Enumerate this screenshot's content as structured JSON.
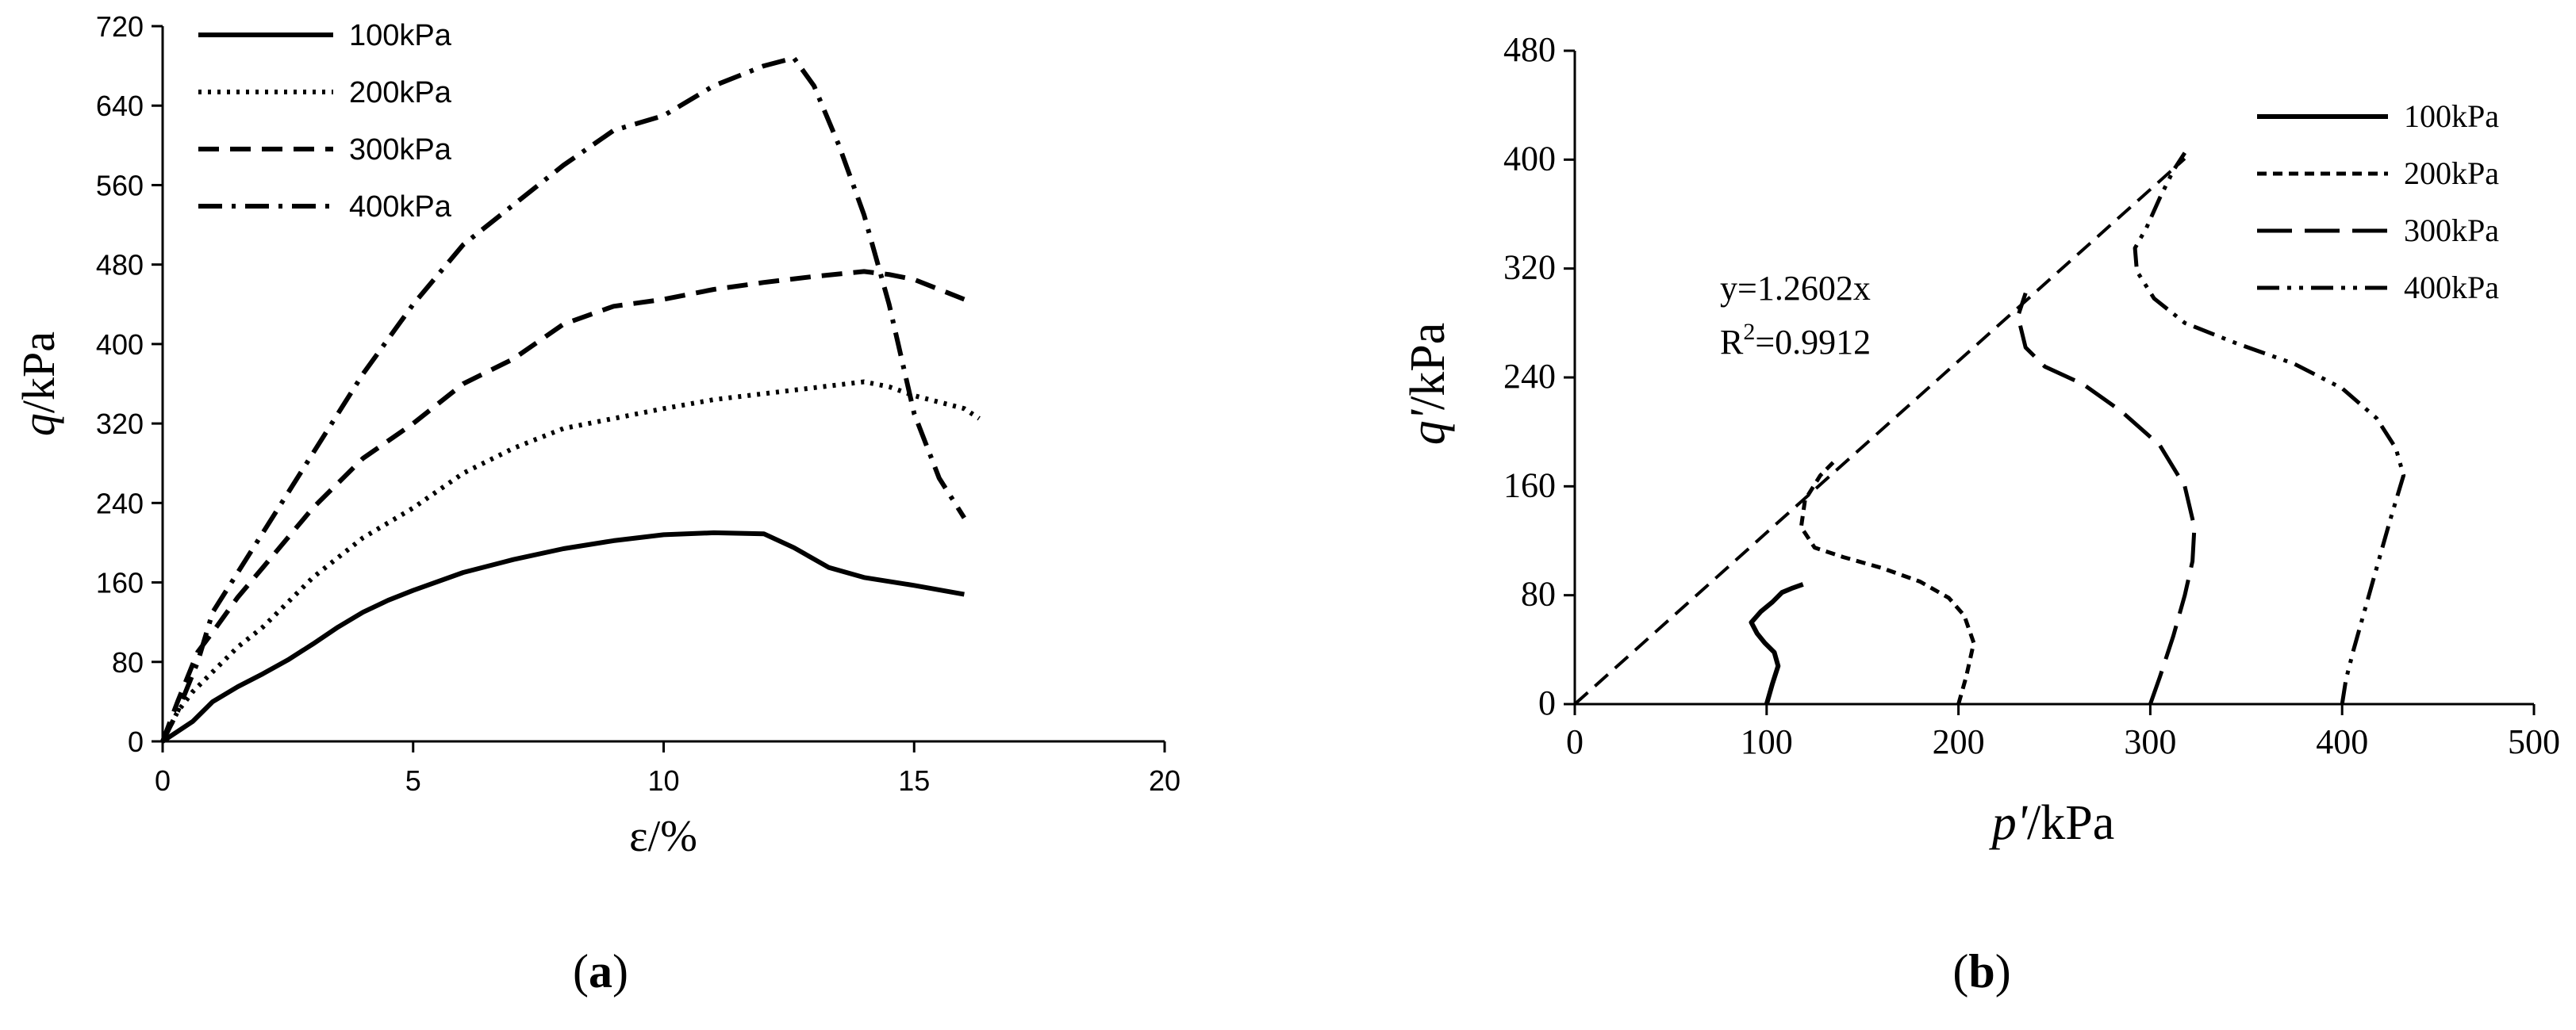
{
  "chart_data": [
    {
      "panel": "(a)",
      "type": "line",
      "xlabel": "ε/%",
      "ylabel": "q/kPa",
      "xlim": [
        0,
        20
      ],
      "ylim": [
        0,
        720
      ],
      "xticks": [
        0,
        5,
        10,
        15,
        20
      ],
      "yticks": [
        0,
        80,
        160,
        240,
        320,
        400,
        480,
        560,
        640,
        720
      ],
      "legend": "top-left",
      "series": [
        {
          "name": "100kPa",
          "style": "solid",
          "points": [
            [
              0,
              0
            ],
            [
              0.3,
              10
            ],
            [
              0.6,
              20
            ],
            [
              1,
              40
            ],
            [
              1.5,
              55
            ],
            [
              2,
              68
            ],
            [
              2.5,
              82
            ],
            [
              3,
              98
            ],
            [
              3.5,
              115
            ],
            [
              4,
              130
            ],
            [
              4.5,
              142
            ],
            [
              5,
              152
            ],
            [
              6,
              170
            ],
            [
              7,
              183
            ],
            [
              8,
              194
            ],
            [
              9,
              202
            ],
            [
              10,
              208
            ],
            [
              11,
              210
            ],
            [
              12,
              209
            ],
            [
              12.6,
              195
            ],
            [
              13.3,
              175
            ],
            [
              14,
              165
            ],
            [
              15,
              157
            ],
            [
              16,
              148
            ]
          ]
        },
        {
          "name": "200kPa",
          "style": "dotted",
          "points": [
            [
              0,
              0
            ],
            [
              0.3,
              30
            ],
            [
              0.6,
              50
            ],
            [
              1,
              70
            ],
            [
              1.5,
              95
            ],
            [
              2,
              115
            ],
            [
              3,
              165
            ],
            [
              4,
              205
            ],
            [
              5,
              235
            ],
            [
              6,
              270
            ],
            [
              7,
              295
            ],
            [
              8,
              315
            ],
            [
              9,
              325
            ],
            [
              10,
              335
            ],
            [
              11,
              344
            ],
            [
              12,
              350
            ],
            [
              13,
              356
            ],
            [
              14,
              362
            ],
            [
              14.5,
              357
            ],
            [
              15,
              348
            ],
            [
              16,
              335
            ],
            [
              16.3,
              325
            ]
          ]
        },
        {
          "name": "300kPa",
          "style": "dashed",
          "points": [
            [
              0,
              0
            ],
            [
              0.3,
              40
            ],
            [
              0.7,
              90
            ],
            [
              1,
              110
            ],
            [
              1.5,
              145
            ],
            [
              2,
              175
            ],
            [
              3,
              235
            ],
            [
              4,
              285
            ],
            [
              5,
              320
            ],
            [
              6,
              360
            ],
            [
              7,
              385
            ],
            [
              8,
              420
            ],
            [
              9,
              438
            ],
            [
              10,
              445
            ],
            [
              11,
              455
            ],
            [
              12,
              462
            ],
            [
              13,
              468
            ],
            [
              14,
              473
            ],
            [
              14.5,
              470
            ],
            [
              15,
              465
            ],
            [
              16,
              445
            ]
          ]
        },
        {
          "name": "400kPa",
          "style": "dashdot",
          "points": [
            [
              0,
              0
            ],
            [
              0.3,
              30
            ],
            [
              0.7,
              80
            ],
            [
              1,
              130
            ],
            [
              2,
              210
            ],
            [
              3,
              290
            ],
            [
              4,
              370
            ],
            [
              5,
              440
            ],
            [
              6,
              500
            ],
            [
              7,
              540
            ],
            [
              8,
              580
            ],
            [
              9,
              615
            ],
            [
              10,
              630
            ],
            [
              11,
              660
            ],
            [
              12,
              680
            ],
            [
              12.6,
              688
            ],
            [
              13,
              660
            ],
            [
              13.5,
              600
            ],
            [
              14,
              530
            ],
            [
              14.5,
              440
            ],
            [
              15,
              330
            ],
            [
              15.5,
              265
            ],
            [
              16,
              225
            ]
          ]
        }
      ]
    },
    {
      "panel": "(b)",
      "type": "line",
      "xlabel": "p'/kPa",
      "ylabel": "q'/kPa",
      "xlim": [
        0,
        500
      ],
      "ylim": [
        0,
        480
      ],
      "xticks": [
        0,
        100,
        200,
        300,
        400,
        500
      ],
      "yticks": [
        0,
        80,
        160,
        240,
        320,
        400,
        480
      ],
      "legend": "top-right",
      "annotation": {
        "line1": "y=1.2602x",
        "line2_pre": "R",
        "line2_sup": "2",
        "line2_post": "=0.9912"
      },
      "fit_line": {
        "slope": 1.2602,
        "x_range": [
          0,
          318
        ]
      },
      "series": [
        {
          "name": "100kPa",
          "style": "solid",
          "points": [
            [
              100,
              0
            ],
            [
              103,
              15
            ],
            [
              106,
              28
            ],
            [
              104,
              38
            ],
            [
              99,
              45
            ],
            [
              95,
              52
            ],
            [
              92,
              60
            ],
            [
              97,
              68
            ],
            [
              103,
              75
            ],
            [
              108,
              82
            ],
            [
              113,
              85
            ],
            [
              119,
              88
            ]
          ]
        },
        {
          "name": "200kPa",
          "style": "shortdash",
          "points": [
            [
              200,
              0
            ],
            [
              204,
              20
            ],
            [
              208,
              45
            ],
            [
              203,
              65
            ],
            [
              195,
              78
            ],
            [
              180,
              90
            ],
            [
              160,
              100
            ],
            [
              140,
              108
            ],
            [
              125,
              115
            ],
            [
              118,
              130
            ],
            [
              120,
              150
            ],
            [
              128,
              168
            ],
            [
              135,
              178
            ]
          ]
        },
        {
          "name": "300kPa",
          "style": "longdash",
          "points": [
            [
              300,
              0
            ],
            [
              305,
              20
            ],
            [
              312,
              50
            ],
            [
              318,
              80
            ],
            [
              322,
              105
            ],
            [
              323,
              130
            ],
            [
              318,
              160
            ],
            [
              305,
              190
            ],
            [
              285,
              215
            ],
            [
              265,
              235
            ],
            [
              245,
              248
            ],
            [
              235,
              262
            ],
            [
              231,
              285
            ],
            [
              235,
              302
            ]
          ]
        },
        {
          "name": "400kPa",
          "style": "dashdotdot",
          "points": [
            [
              400,
              0
            ],
            [
              402,
              18
            ],
            [
              406,
              40
            ],
            [
              412,
              70
            ],
            [
              418,
              100
            ],
            [
              425,
              135
            ],
            [
              432,
              168
            ],
            [
              428,
              188
            ],
            [
              418,
              210
            ],
            [
              400,
              232
            ],
            [
              375,
              250
            ],
            [
              345,
              265
            ],
            [
              318,
              280
            ],
            [
              302,
              298
            ],
            [
              293,
              318
            ],
            [
              292,
              335
            ],
            [
              298,
              350
            ],
            [
              305,
              372
            ],
            [
              312,
              392
            ],
            [
              318,
              405
            ]
          ]
        }
      ]
    }
  ],
  "panel_labels": {
    "a": "a",
    "b": "b"
  }
}
